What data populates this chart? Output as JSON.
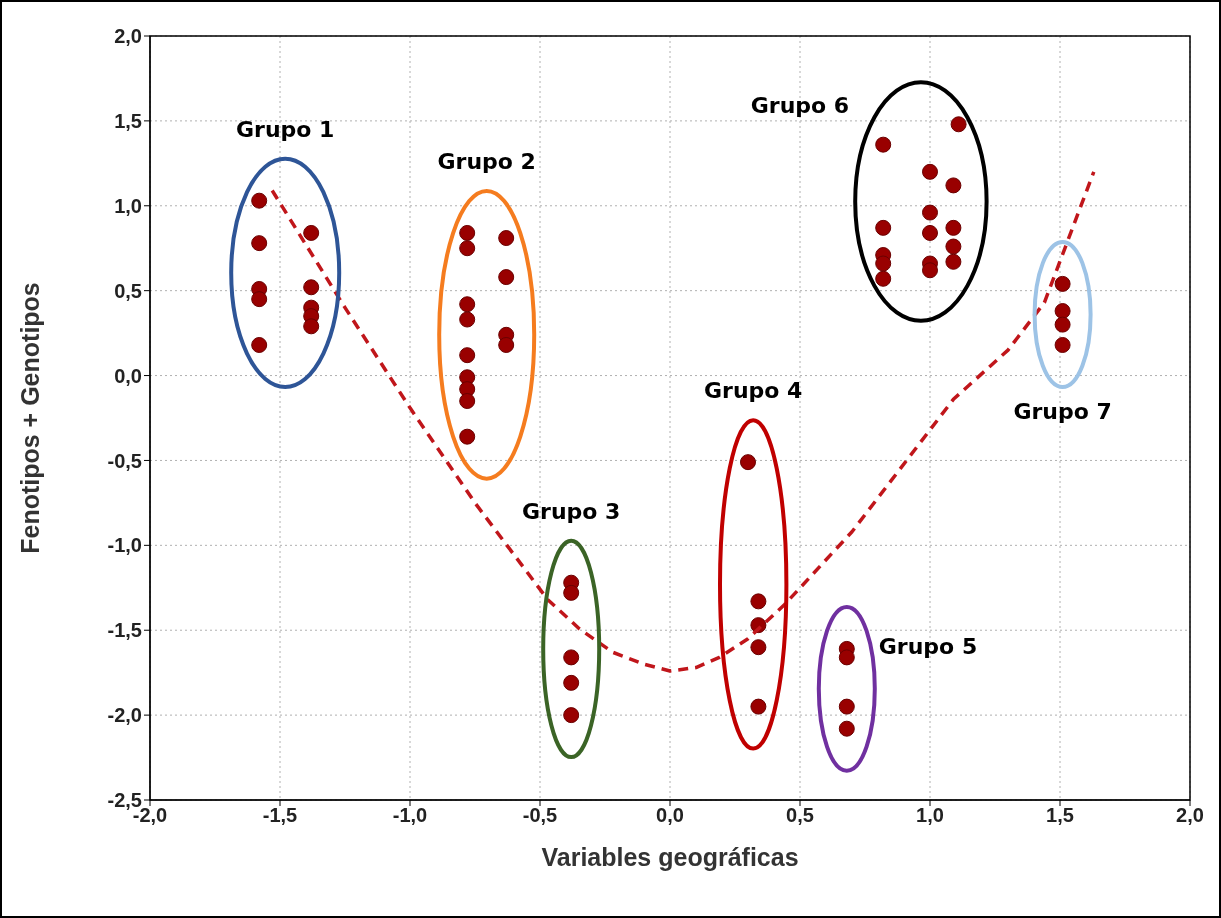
{
  "chart_data": {
    "type": "scatter",
    "xlabel": "Variables geográficas",
    "ylabel": "Fenotipos + Genotipos",
    "xlim": [
      -2,
      2
    ],
    "ylim": [
      -2.5,
      2
    ],
    "xticks": [
      {
        "value": -2,
        "label": "-2,0"
      },
      {
        "value": -1.5,
        "label": "-1,5"
      },
      {
        "value": -1,
        "label": "-1,0"
      },
      {
        "value": -0.5,
        "label": "-0,5"
      },
      {
        "value": 0,
        "label": "0,0"
      },
      {
        "value": 0.5,
        "label": "0,5"
      },
      {
        "value": 1,
        "label": "1,0"
      },
      {
        "value": 1.5,
        "label": "1,5"
      },
      {
        "value": 2,
        "label": "2,0"
      }
    ],
    "yticks": [
      {
        "value": -2.5,
        "label": "-2,5"
      },
      {
        "value": -2,
        "label": "-2,0"
      },
      {
        "value": -1.5,
        "label": "-1,5"
      },
      {
        "value": -1,
        "label": "-1,0"
      },
      {
        "value": -0.5,
        "label": "-0,5"
      },
      {
        "value": 0,
        "label": "0,0"
      },
      {
        "value": 0.5,
        "label": "0,5"
      },
      {
        "value": 1,
        "label": "1,0"
      },
      {
        "value": 1.5,
        "label": "1,5"
      },
      {
        "value": 2,
        "label": "2,0"
      }
    ],
    "grid": true,
    "marker": "circle",
    "series": [
      {
        "name": "Grupo 1",
        "color": "#990000",
        "x": [
          -1.58,
          -1.58,
          -1.58,
          -1.58,
          -1.58,
          -1.38,
          -1.38,
          -1.38,
          -1.38,
          -1.38
        ],
        "values": [
          1.03,
          0.78,
          0.51,
          0.45,
          0.18,
          0.84,
          0.52,
          0.4,
          0.35,
          0.29
        ]
      },
      {
        "name": "Grupo 2",
        "color": "#990000",
        "x": [
          -0.78,
          -0.78,
          -0.78,
          -0.78,
          -0.78,
          -0.78,
          -0.78,
          -0.78,
          -0.78,
          -0.63,
          -0.63,
          -0.63,
          -0.63
        ],
        "values": [
          0.84,
          0.75,
          0.42,
          0.33,
          0.12,
          -0.01,
          -0.08,
          -0.15,
          -0.36,
          0.81,
          0.58,
          0.24,
          0.18
        ]
      },
      {
        "name": "Grupo 3",
        "color": "#990000",
        "x": [
          -0.38,
          -0.38,
          -0.38,
          -0.38,
          -0.38
        ],
        "values": [
          -1.22,
          -1.28,
          -1.66,
          -1.81,
          -2.0
        ]
      },
      {
        "name": "Grupo 4",
        "color": "#990000",
        "x": [
          0.3,
          0.34,
          0.34,
          0.34,
          0.34
        ],
        "values": [
          -0.51,
          -1.33,
          -1.47,
          -1.6,
          -1.95
        ]
      },
      {
        "name": "Grupo 5",
        "color": "#990000",
        "x": [
          0.68,
          0.68,
          0.68,
          0.68
        ],
        "values": [
          -1.61,
          -1.66,
          -1.95,
          -2.08
        ]
      },
      {
        "name": "Grupo 6",
        "color": "#990000",
        "x": [
          0.82,
          1.11,
          1.0,
          1.09,
          1.0,
          1.0,
          0.82,
          1.09,
          1.09,
          1.09,
          0.82,
          0.82,
          0.82,
          1.0,
          1.0
        ],
        "values": [
          1.36,
          1.48,
          1.2,
          1.12,
          0.96,
          0.84,
          0.87,
          0.87,
          0.76,
          0.67,
          0.71,
          0.66,
          0.57,
          0.66,
          0.62
        ]
      },
      {
        "name": "Grupo 7",
        "color": "#990000",
        "x": [
          1.51,
          1.51,
          1.51,
          1.51
        ],
        "values": [
          0.54,
          0.38,
          0.3,
          0.18
        ]
      },
      {
        "type": "line",
        "line_style": "dashed",
        "marker": "none",
        "color": "#c0161b",
        "x": [
          -1.53,
          -1.25,
          -1.0,
          -0.75,
          -0.47,
          -0.35,
          -0.22,
          -0.1,
          0.0,
          0.1,
          0.19,
          0.3,
          0.44,
          0.7,
          0.94,
          1.09,
          1.3,
          1.44,
          1.63
        ],
        "values": [
          1.09,
          0.4,
          -0.19,
          -0.75,
          -1.32,
          -1.49,
          -1.63,
          -1.7,
          -1.74,
          -1.72,
          -1.66,
          -1.55,
          -1.35,
          -0.92,
          -0.44,
          -0.14,
          0.15,
          0.43,
          1.2
        ]
      }
    ]
  }
}
